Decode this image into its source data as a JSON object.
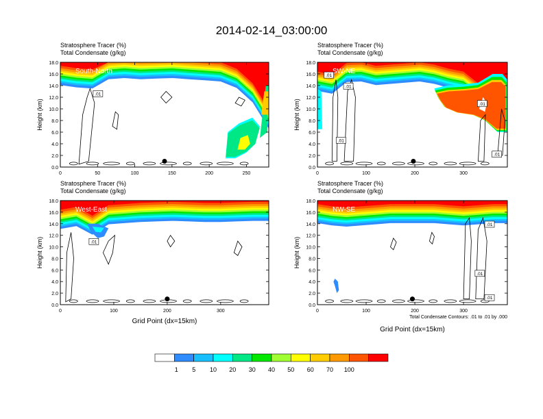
{
  "page_title": "2014-02-14_03:00:00",
  "chart_data": [
    {
      "type": "heatmap",
      "panel_label": "South-North",
      "title_line1": "Stratosphere Tracer   (%)",
      "title_line2": "Total Condensate   (g/kg)",
      "ylabel": "Height (km)",
      "xlabel": "",
      "xlim": [
        0,
        280
      ],
      "ylim": [
        0,
        18
      ],
      "x_ticks": [
        0,
        50,
        100,
        150,
        200,
        250
      ],
      "y_ticks": [
        0,
        2,
        4,
        6,
        8,
        10,
        12,
        14,
        16,
        18
      ],
      "marker_x": 140,
      "tropopause_height_km": [
        15.0,
        14.6,
        14.4,
        16.0,
        16.2,
        16.0,
        16.1,
        16.2,
        16.0,
        15.8,
        15.6,
        14.5,
        12.0,
        7.5
      ],
      "contour_labels": [
        ".01"
      ],
      "footnote": ""
    },
    {
      "type": "heatmap",
      "panel_label": "SW-NE",
      "title_line1": "Stratosphere Tracer   (%)",
      "title_line2": "Total Condensate   (g/kg)",
      "ylabel": "Height (km)",
      "xlabel": "",
      "xlim": [
        0,
        390
      ],
      "ylim": [
        0,
        18
      ],
      "x_ticks": [
        0,
        100,
        200,
        300
      ],
      "y_ticks": [
        0,
        2,
        4,
        6,
        8,
        10,
        12,
        14,
        16,
        18
      ],
      "marker_x": 197,
      "tropopause_height_km": [
        14.0,
        13.5,
        15.5,
        15.6,
        15.0,
        15.2,
        15.4,
        15.6,
        15.2,
        14.5,
        14.0,
        12.0,
        9.0,
        9.5
      ],
      "contour_labels": [
        ".01",
        ".01",
        ".01",
        ".01",
        ".01"
      ],
      "footnote": ""
    },
    {
      "type": "heatmap",
      "panel_label": "West-East",
      "title_line1": "Stratosphere Tracer   (%)",
      "title_line2": "Total Condensate   (g/kg)",
      "ylabel": "Height (km)",
      "xlabel": "Grid Point (dx=15km)",
      "xlim": [
        0,
        390
      ],
      "ylim": [
        0,
        18
      ],
      "x_ticks": [
        0,
        100,
        200,
        300
      ],
      "y_ticks": [
        0,
        2,
        4,
        6,
        8,
        10,
        12,
        14,
        16,
        18
      ],
      "marker_x": 200,
      "tropopause_height_km": [
        14.0,
        14.5,
        13.0,
        14.8,
        15.0,
        15.2,
        15.3,
        15.4,
        15.3,
        15.2,
        15.2,
        15.3,
        15.4,
        15.4
      ],
      "contour_labels": [
        ".01"
      ],
      "footnote": ""
    },
    {
      "type": "heatmap",
      "panel_label": "NW-SE",
      "title_line1": "Stratosphere Tracer   (%)",
      "title_line2": "Total Condensate   (g/kg)",
      "ylabel": "Height (km)",
      "xlabel": "Grid Point (dx=15km)",
      "xlim": [
        0,
        390
      ],
      "ylim": [
        0,
        18
      ],
      "x_ticks": [
        0,
        100,
        200,
        300
      ],
      "y_ticks": [
        0,
        2,
        4,
        6,
        8,
        10,
        12,
        14,
        16,
        18
      ],
      "marker_x": 195,
      "tropopause_height_km": [
        15.0,
        14.6,
        14.4,
        14.6,
        14.8,
        15.0,
        15.0,
        15.0,
        15.0,
        14.8,
        14.6,
        14.8,
        15.0,
        15.0
      ],
      "contour_labels": [
        ".01",
        ".01",
        ".01"
      ],
      "footnote": "Total Condensate Contours: .01 to .01 by .000"
    }
  ],
  "colorbar": {
    "labels": [
      "1",
      "5",
      "10",
      "20",
      "30",
      "40",
      "50",
      "60",
      "70",
      "100"
    ],
    "colors": [
      "#ffffff",
      "#2f8cff",
      "#18bfff",
      "#00ffff",
      "#00e886",
      "#00e800",
      "#a0ff30",
      "#ffff00",
      "#ffcc00",
      "#ff9900",
      "#ff5500",
      "#ff0000"
    ]
  }
}
